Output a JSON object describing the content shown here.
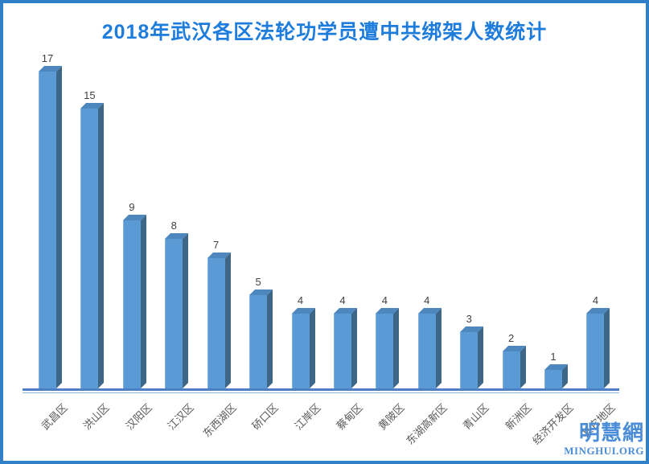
{
  "title": "2018年武汉各区法轮功学员遭中共绑架人数统计",
  "watermark": {
    "name": "明慧網",
    "site": "MINGHUI.ORG"
  },
  "colors": {
    "title": "#1E7CDC",
    "frame_border": "#2F80C8",
    "bar_front": "#5B9BD5",
    "bar_side": "#3E6687",
    "bar_top": "#4E87BE",
    "axis_line": "#4C7FC4",
    "axis_line_light": "#8FB4DF",
    "value_label": "#404040",
    "category_label": "#595959",
    "watermark": "#4B8DD8"
  },
  "chart_data": {
    "type": "bar",
    "style": "3d-column",
    "title": "2018年武汉各区法轮功学员遭中共绑架人数统计",
    "categories": [
      "武昌区",
      "洪山区",
      "汉阳区",
      "江汉区",
      "东西湖区",
      "硚口区",
      "江岸区",
      "蔡甸区",
      "黄陂区",
      "东湖高新区",
      "青山区",
      "新洲区",
      "经济开发区",
      "其它地区"
    ],
    "values": [
      17,
      15,
      9,
      8,
      7,
      5,
      4,
      4,
      4,
      4,
      3,
      2,
      1,
      4
    ],
    "xlabel": "",
    "ylabel": "",
    "ylim": [
      0,
      18
    ],
    "grid": false,
    "legend": false,
    "value_labels_shown": true,
    "category_label_rotation_deg": -45
  }
}
